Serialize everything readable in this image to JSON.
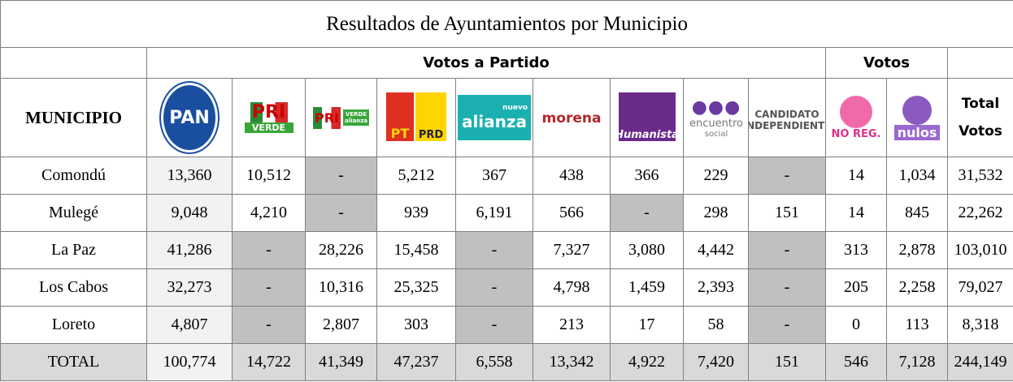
{
  "title": "Resultados de Ayuntamientos por Municipio",
  "groups": [
    "Votos a Partido",
    "Votos"
  ],
  "header": {
    "municipio": "MUNICIPIO",
    "logos": [
      [
        "PAN"
      ],
      [
        "PRI",
        "VERDE"
      ],
      [
        "PRI",
        "VERDE",
        "alianza"
      ],
      [
        "PT",
        "PRD"
      ],
      [
        "nuevo",
        "alianza"
      ],
      [
        "morena"
      ],
      [
        "Humanista"
      ],
      [
        "encuentro",
        "social"
      ],
      [
        "CANDIDATO",
        "INDEPENDIENTE"
      ],
      [
        "NO REG."
      ],
      [
        "nulos"
      ]
    ],
    "total": [
      "Total",
      "Votos"
    ]
  },
  "rows": [
    {
      "municipio": "Comondú",
      "cells": [
        "13,360",
        "10,512",
        "-",
        "5,212",
        "367",
        "438",
        "366",
        "229",
        "-",
        "14",
        "1,034",
        "31,532"
      ]
    },
    {
      "municipio": "Mulegé",
      "cells": [
        "9,048",
        "4,210",
        "-",
        "939",
        "6,191",
        "566",
        "-",
        "298",
        "151",
        "14",
        "845",
        "22,262"
      ]
    },
    {
      "municipio": "La Paz",
      "cells": [
        "41,286",
        "-",
        "28,226",
        "15,458",
        "-",
        "7,327",
        "3,080",
        "4,442",
        "-",
        "313",
        "2,878",
        "103,010"
      ]
    },
    {
      "municipio": "Los Cabos",
      "cells": [
        "32,273",
        "-",
        "10,316",
        "25,325",
        "-",
        "4,798",
        "1,459",
        "2,393",
        "-",
        "205",
        "2,258",
        "79,027"
      ]
    },
    {
      "municipio": "Loreto",
      "cells": [
        "4,807",
        "-",
        "2,807",
        "303",
        "-",
        "213",
        "17",
        "58",
        "-",
        "0",
        "113",
        "8,318"
      ]
    }
  ],
  "total": {
    "label": "TOTAL",
    "cells": [
      "100,774",
      "14,722",
      "41,349",
      "47,237",
      "6,558",
      "13,342",
      "4,922",
      "7,420",
      "151",
      "546",
      "7,128",
      "244,149"
    ]
  }
}
